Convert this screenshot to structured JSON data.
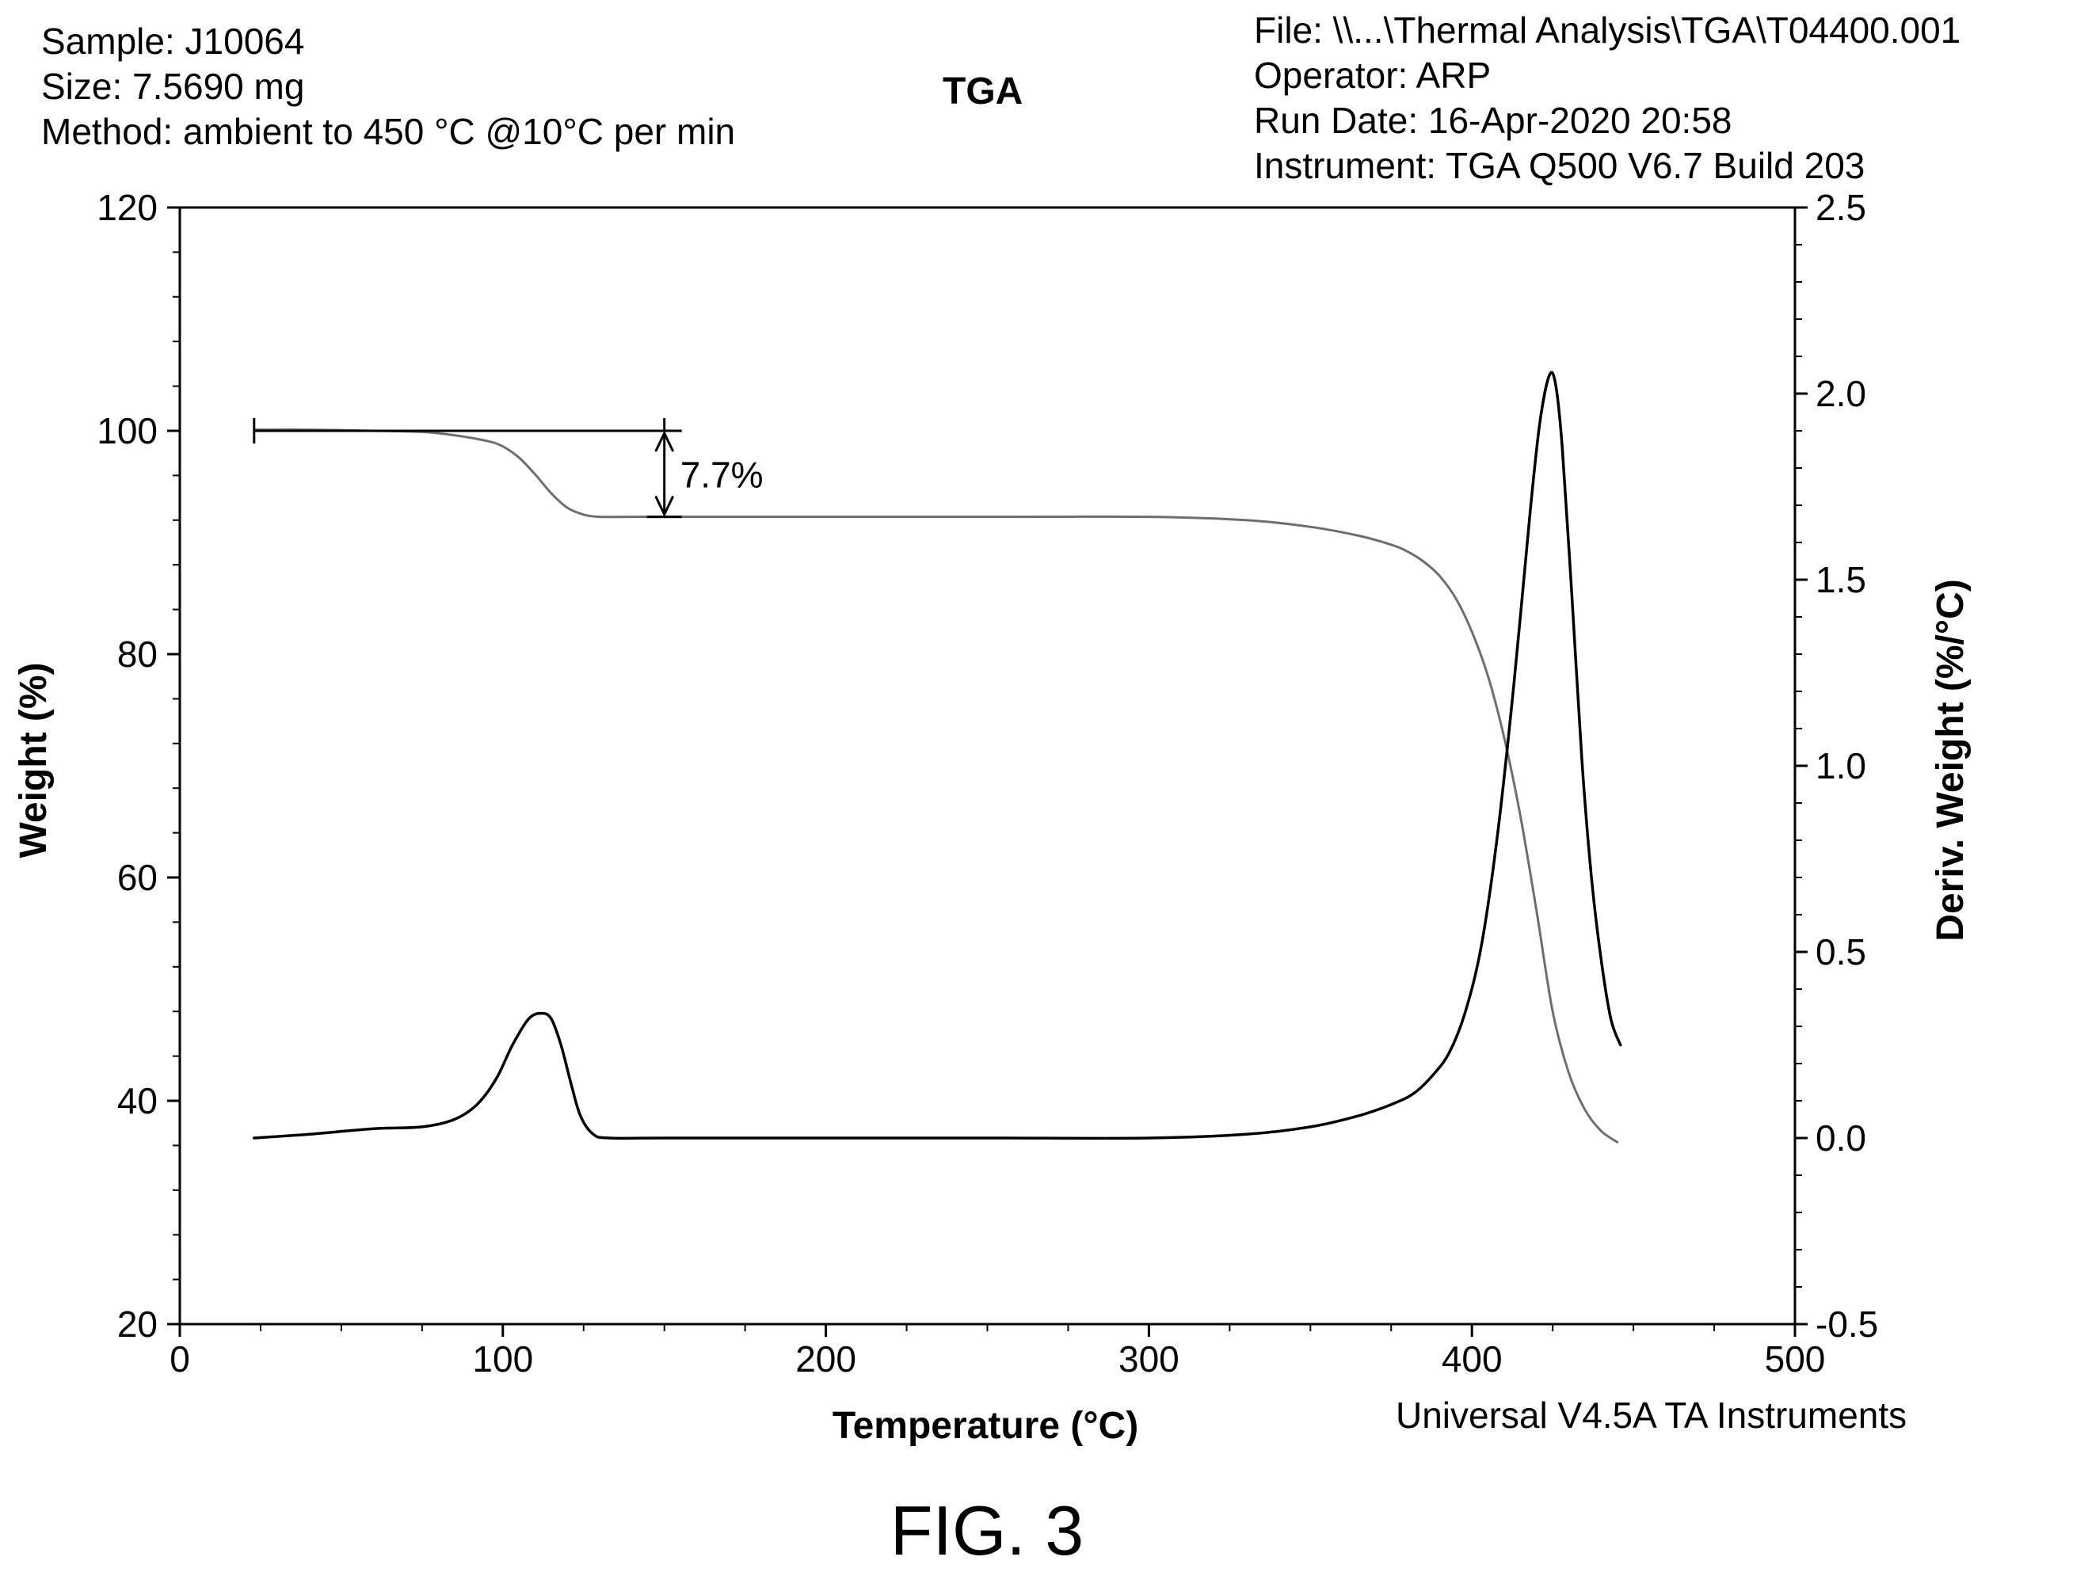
{
  "header": {
    "sample": "Sample: J10064",
    "size": "Size: 7.5690 mg",
    "method": "Method: ambient to 450 °C @10°C per min",
    "file": "File: \\\\...\\Thermal Analysis\\TGA\\T04400.001",
    "operator": "Operator: ARP",
    "run_date": "Run Date: 16-Apr-2020 20:58",
    "instrument": "Instrument: TGA Q500 V6.7 Build 203"
  },
  "software": "Universal V4.5A TA Instruments",
  "figure_label": "FIG. 3",
  "chart_data": {
    "type": "line",
    "title": "TGA",
    "xlabel": "Temperature (°C)",
    "ylabel": "Weight (%)",
    "y2label": "Deriv. Weight (%/°C)",
    "xlim": [
      0,
      500
    ],
    "ylim": [
      20,
      120
    ],
    "y2lim": [
      -0.5,
      2.5
    ],
    "xticks": [
      "0",
      "100",
      "200",
      "300",
      "400",
      "500"
    ],
    "yticks": [
      "20",
      "40",
      "60",
      "80",
      "100",
      "120"
    ],
    "y2ticks": [
      "-0.5",
      "0.0",
      "0.5",
      "1.0",
      "1.5",
      "2.0",
      "2.5"
    ],
    "grid": false,
    "colors": {
      "weight": "#6e6e6e",
      "deriv": "#000000"
    },
    "annotation": {
      "label": "7.7%",
      "x": 150,
      "y_top": 100.0,
      "y_bottom": 92.3,
      "x_start": 23
    },
    "series": [
      {
        "axis": "left",
        "x": [
          23,
          40,
          60,
          75,
          85,
          95,
          100,
          105,
          110,
          115,
          120,
          125,
          130,
          140,
          160,
          200,
          250,
          300,
          330,
          350,
          365,
          375,
          380,
          385,
          390,
          395,
          400,
          405,
          410,
          415,
          420,
          425,
          430,
          435,
          440,
          445
        ],
        "y": [
          100.1,
          100.1,
          100.0,
          99.9,
          99.6,
          99.1,
          98.6,
          97.6,
          96.1,
          94.4,
          93.1,
          92.5,
          92.3,
          92.3,
          92.3,
          92.3,
          92.3,
          92.3,
          92.0,
          91.4,
          90.6,
          89.8,
          89.2,
          88.3,
          87.0,
          85.0,
          82.0,
          78.0,
          72.5,
          65.5,
          57.0,
          48.0,
          42.5,
          39.2,
          37.3,
          36.3
        ]
      },
      {
        "axis": "right",
        "x": [
          23,
          40,
          60,
          75,
          85,
          92,
          98,
          103,
          108,
          112,
          115,
          118,
          121,
          124,
          128,
          133,
          150,
          200,
          250,
          300,
          330,
          350,
          365,
          375,
          382,
          388,
          393,
          398,
          403,
          408,
          413,
          418,
          421,
          424,
          426,
          428,
          431,
          434,
          437,
          440,
          443,
          446
        ],
        "y": [
          0.0,
          0.01,
          0.025,
          0.03,
          0.05,
          0.09,
          0.16,
          0.25,
          0.32,
          0.335,
          0.32,
          0.25,
          0.15,
          0.06,
          0.01,
          0.0,
          0.0,
          0.0,
          0.0,
          0.0,
          0.01,
          0.03,
          0.06,
          0.09,
          0.12,
          0.17,
          0.23,
          0.34,
          0.52,
          0.82,
          1.22,
          1.68,
          1.92,
          2.05,
          2.02,
          1.85,
          1.45,
          1.02,
          0.7,
          0.48,
          0.32,
          0.25
        ]
      }
    ]
  }
}
